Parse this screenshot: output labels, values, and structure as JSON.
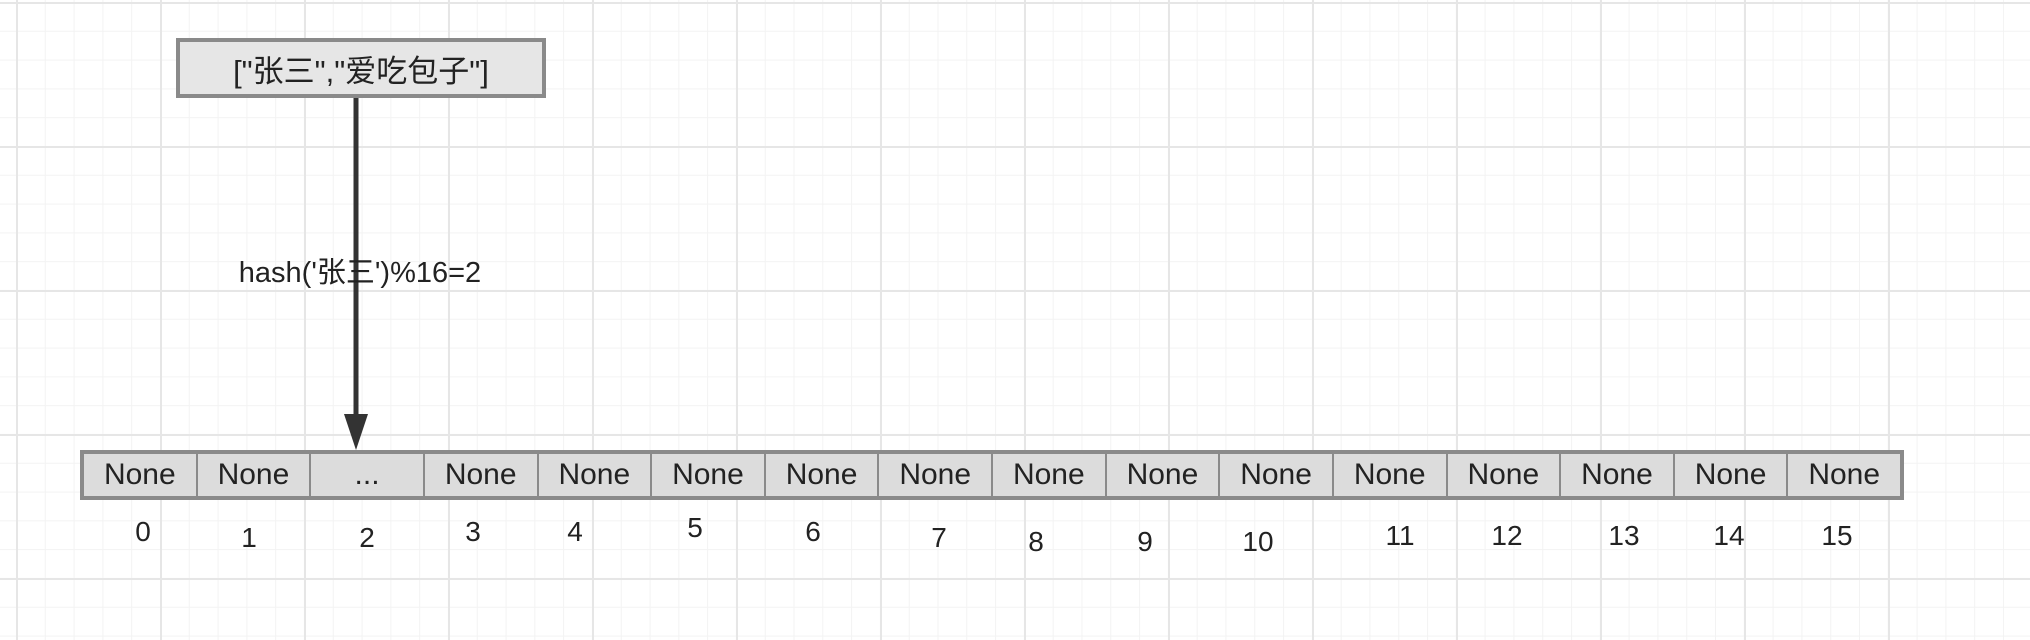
{
  "source_node": {
    "label": "[\"张三\",\"爱吃包子\"]"
  },
  "edge": {
    "label": "hash('张三')%16=2"
  },
  "array": {
    "cells": [
      "None",
      "None",
      "...",
      "None",
      "None",
      "None",
      "None",
      "None",
      "None",
      "None",
      "None",
      "None",
      "None",
      "None",
      "None",
      "None"
    ],
    "indices": [
      "0",
      "1",
      "2",
      "3",
      "4",
      "5",
      "6",
      "7",
      "8",
      "9",
      "10",
      "11",
      "12",
      "13",
      "14",
      "15"
    ]
  },
  "colors": {
    "node_fill": "#e6e6e6",
    "node_stroke": "#8a8a8a",
    "array_fill": "#dcdcdc",
    "arrow": "#333333",
    "grid": "#e6e6e6"
  }
}
